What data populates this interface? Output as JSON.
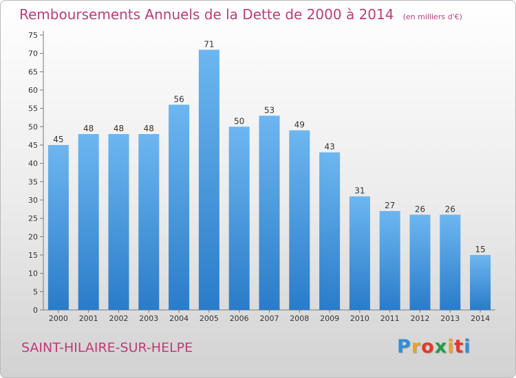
{
  "header": {
    "title": "Remboursements Annuels de la Dette de 2000 à 2014",
    "subtitle": "(en milliers d'€)"
  },
  "footer": {
    "commune": "SAINT-HILAIRE-SUR-HELPE",
    "logo_letters": [
      "P",
      "r",
      "o",
      "x",
      "i",
      "t",
      "i"
    ],
    "logo_colors": [
      "#2f8fd8",
      "#f2a21b",
      "#e8362a",
      "#1f9d46",
      "#f2a21b",
      "#e8362a",
      "#2f8fd8"
    ]
  },
  "colors": {
    "bar_top": "#6db6f0",
    "bar_bottom": "#2a7cc9",
    "title": "#c03a78",
    "axis": "#555555"
  },
  "chart_data": {
    "type": "bar",
    "categories": [
      "2000",
      "2001",
      "2002",
      "2003",
      "2004",
      "2005",
      "2006",
      "2007",
      "2008",
      "2009",
      "2010",
      "2011",
      "2012",
      "2013",
      "2014"
    ],
    "values": [
      45,
      48,
      48,
      48,
      56,
      71,
      50,
      53,
      49,
      43,
      31,
      27,
      26,
      26,
      15
    ],
    "title": "Remboursements Annuels de la Dette de 2000 à 2014",
    "xlabel": "",
    "ylabel": "",
    "ylim": [
      0,
      75
    ],
    "yticks": [
      0,
      5,
      10,
      15,
      20,
      25,
      30,
      35,
      40,
      45,
      50,
      55,
      60,
      65,
      70,
      75
    ],
    "grid": false,
    "data_labels": true
  }
}
